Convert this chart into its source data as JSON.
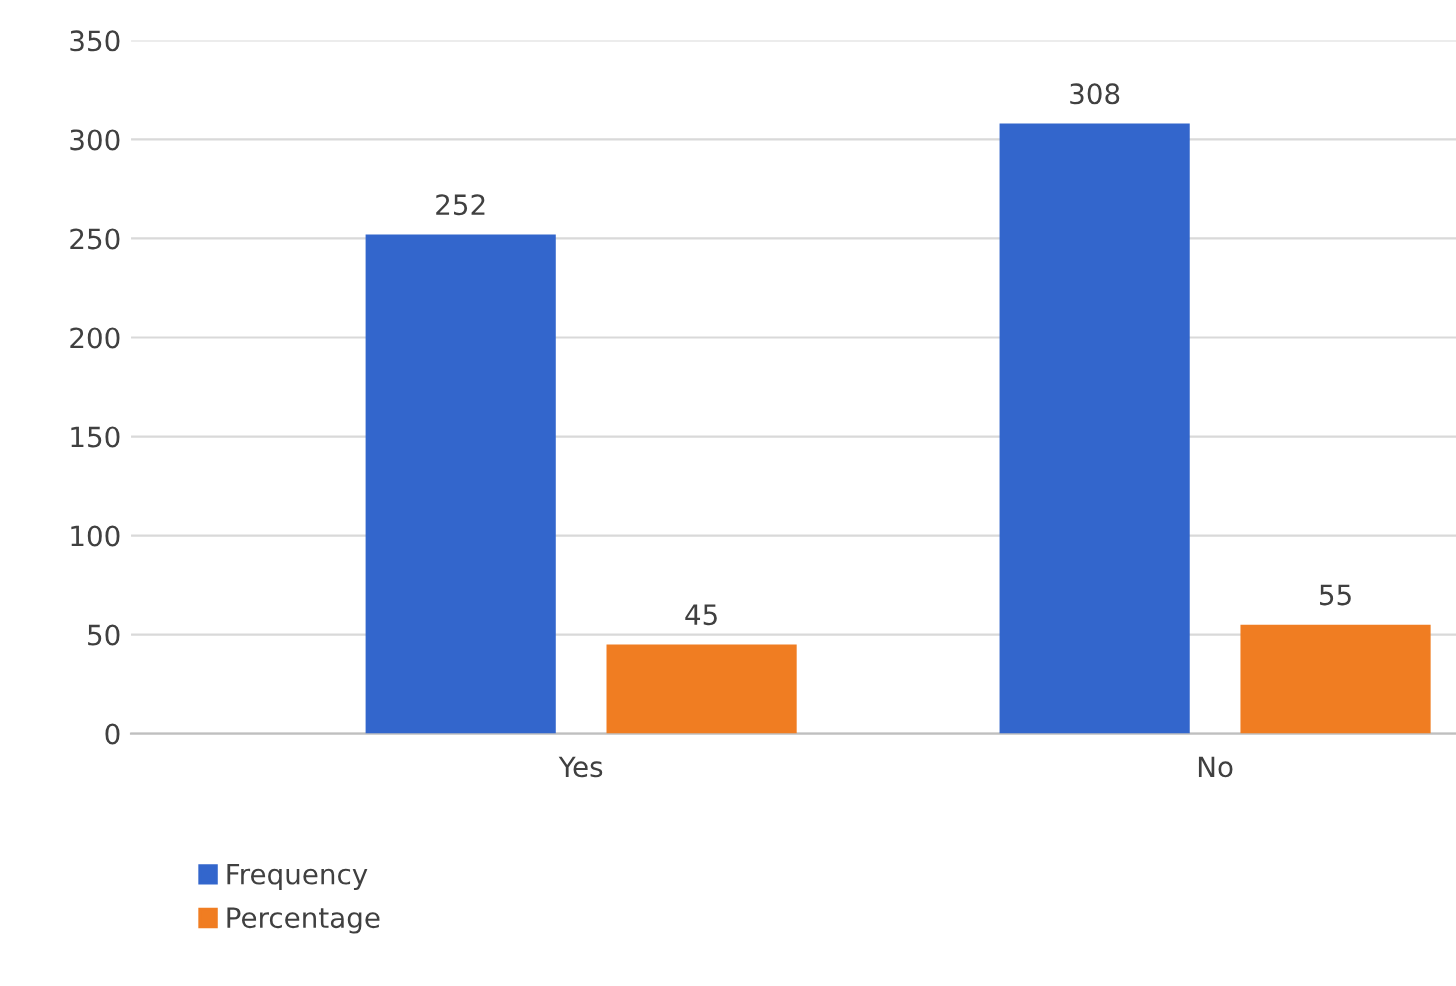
{
  "chart_data": {
    "type": "bar",
    "categories": [
      "Yes",
      "No"
    ],
    "series": [
      {
        "name": "Frequency",
        "color": "#3366cc",
        "values": [
          252,
          308
        ]
      },
      {
        "name": "Percentage",
        "color": "#f07d22",
        "values": [
          45,
          55
        ]
      }
    ],
    "ylim": [
      0,
      350
    ],
    "yticks": [
      0,
      50,
      100,
      150,
      200,
      250,
      300,
      350
    ],
    "grid": "y",
    "legend": "bottom left",
    "data_labels": true
  }
}
